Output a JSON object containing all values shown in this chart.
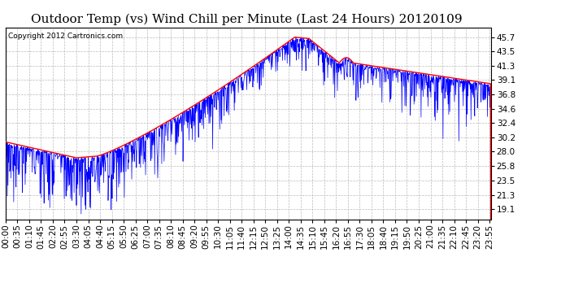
{
  "title": "Outdoor Temp (vs) Wind Chill per Minute (Last 24 Hours) 20120109",
  "copyright": "Copyright 2012 Cartronics.com",
  "yticks": [
    19.1,
    21.3,
    23.5,
    25.8,
    28.0,
    30.2,
    32.4,
    34.6,
    36.8,
    39.1,
    41.3,
    43.5,
    45.7
  ],
  "ymin": 17.5,
  "ymax": 47.2,
  "blue_color": "#0000FF",
  "red_color": "#FF0000",
  "background_color": "#FFFFFF",
  "grid_color": "#BBBBBB",
  "title_fontsize": 11,
  "copyright_fontsize": 6.5,
  "tick_fontsize": 7.5,
  "xtick_labels": [
    "00:00",
    "00:35",
    "01:10",
    "01:45",
    "02:20",
    "02:55",
    "03:30",
    "04:05",
    "04:40",
    "05:15",
    "05:50",
    "06:25",
    "07:00",
    "07:35",
    "08:10",
    "08:45",
    "09:20",
    "09:55",
    "10:30",
    "11:05",
    "11:40",
    "12:15",
    "12:50",
    "13:25",
    "14:00",
    "14:35",
    "15:10",
    "15:45",
    "16:20",
    "16:55",
    "17:30",
    "18:05",
    "18:40",
    "19:15",
    "19:50",
    "20:25",
    "21:00",
    "21:35",
    "22:10",
    "22:45",
    "23:20",
    "23:55"
  ]
}
